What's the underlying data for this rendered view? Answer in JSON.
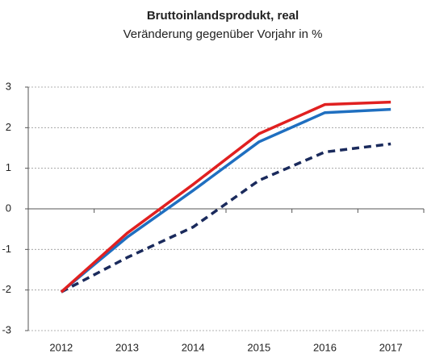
{
  "chart_data": {
    "type": "line",
    "title": "Bruttoinlandsprodukt, real",
    "subtitle": "Veränderung gegenüber Vorjahr in %",
    "categories": [
      "2012",
      "2013",
      "2014",
      "2015",
      "2016",
      "2017"
    ],
    "series": [
      {
        "color": "#1a2a5c",
        "line_style": "dashed",
        "values": [
          -2.05,
          -1.2,
          -0.45,
          0.7,
          1.4,
          1.6
        ]
      },
      {
        "color": "#1f6fc0",
        "line_style": "solid",
        "values": [
          -2.05,
          -0.7,
          0.45,
          1.65,
          2.37,
          2.45
        ]
      },
      {
        "color": "#e02020",
        "line_style": "solid",
        "values": [
          -2.05,
          -0.6,
          0.6,
          1.85,
          2.57,
          2.63
        ]
      }
    ],
    "ylim": [
      -3,
      3
    ],
    "yticks": [
      -3,
      -2,
      -1,
      0,
      1,
      2,
      3
    ],
    "grid": true
  }
}
